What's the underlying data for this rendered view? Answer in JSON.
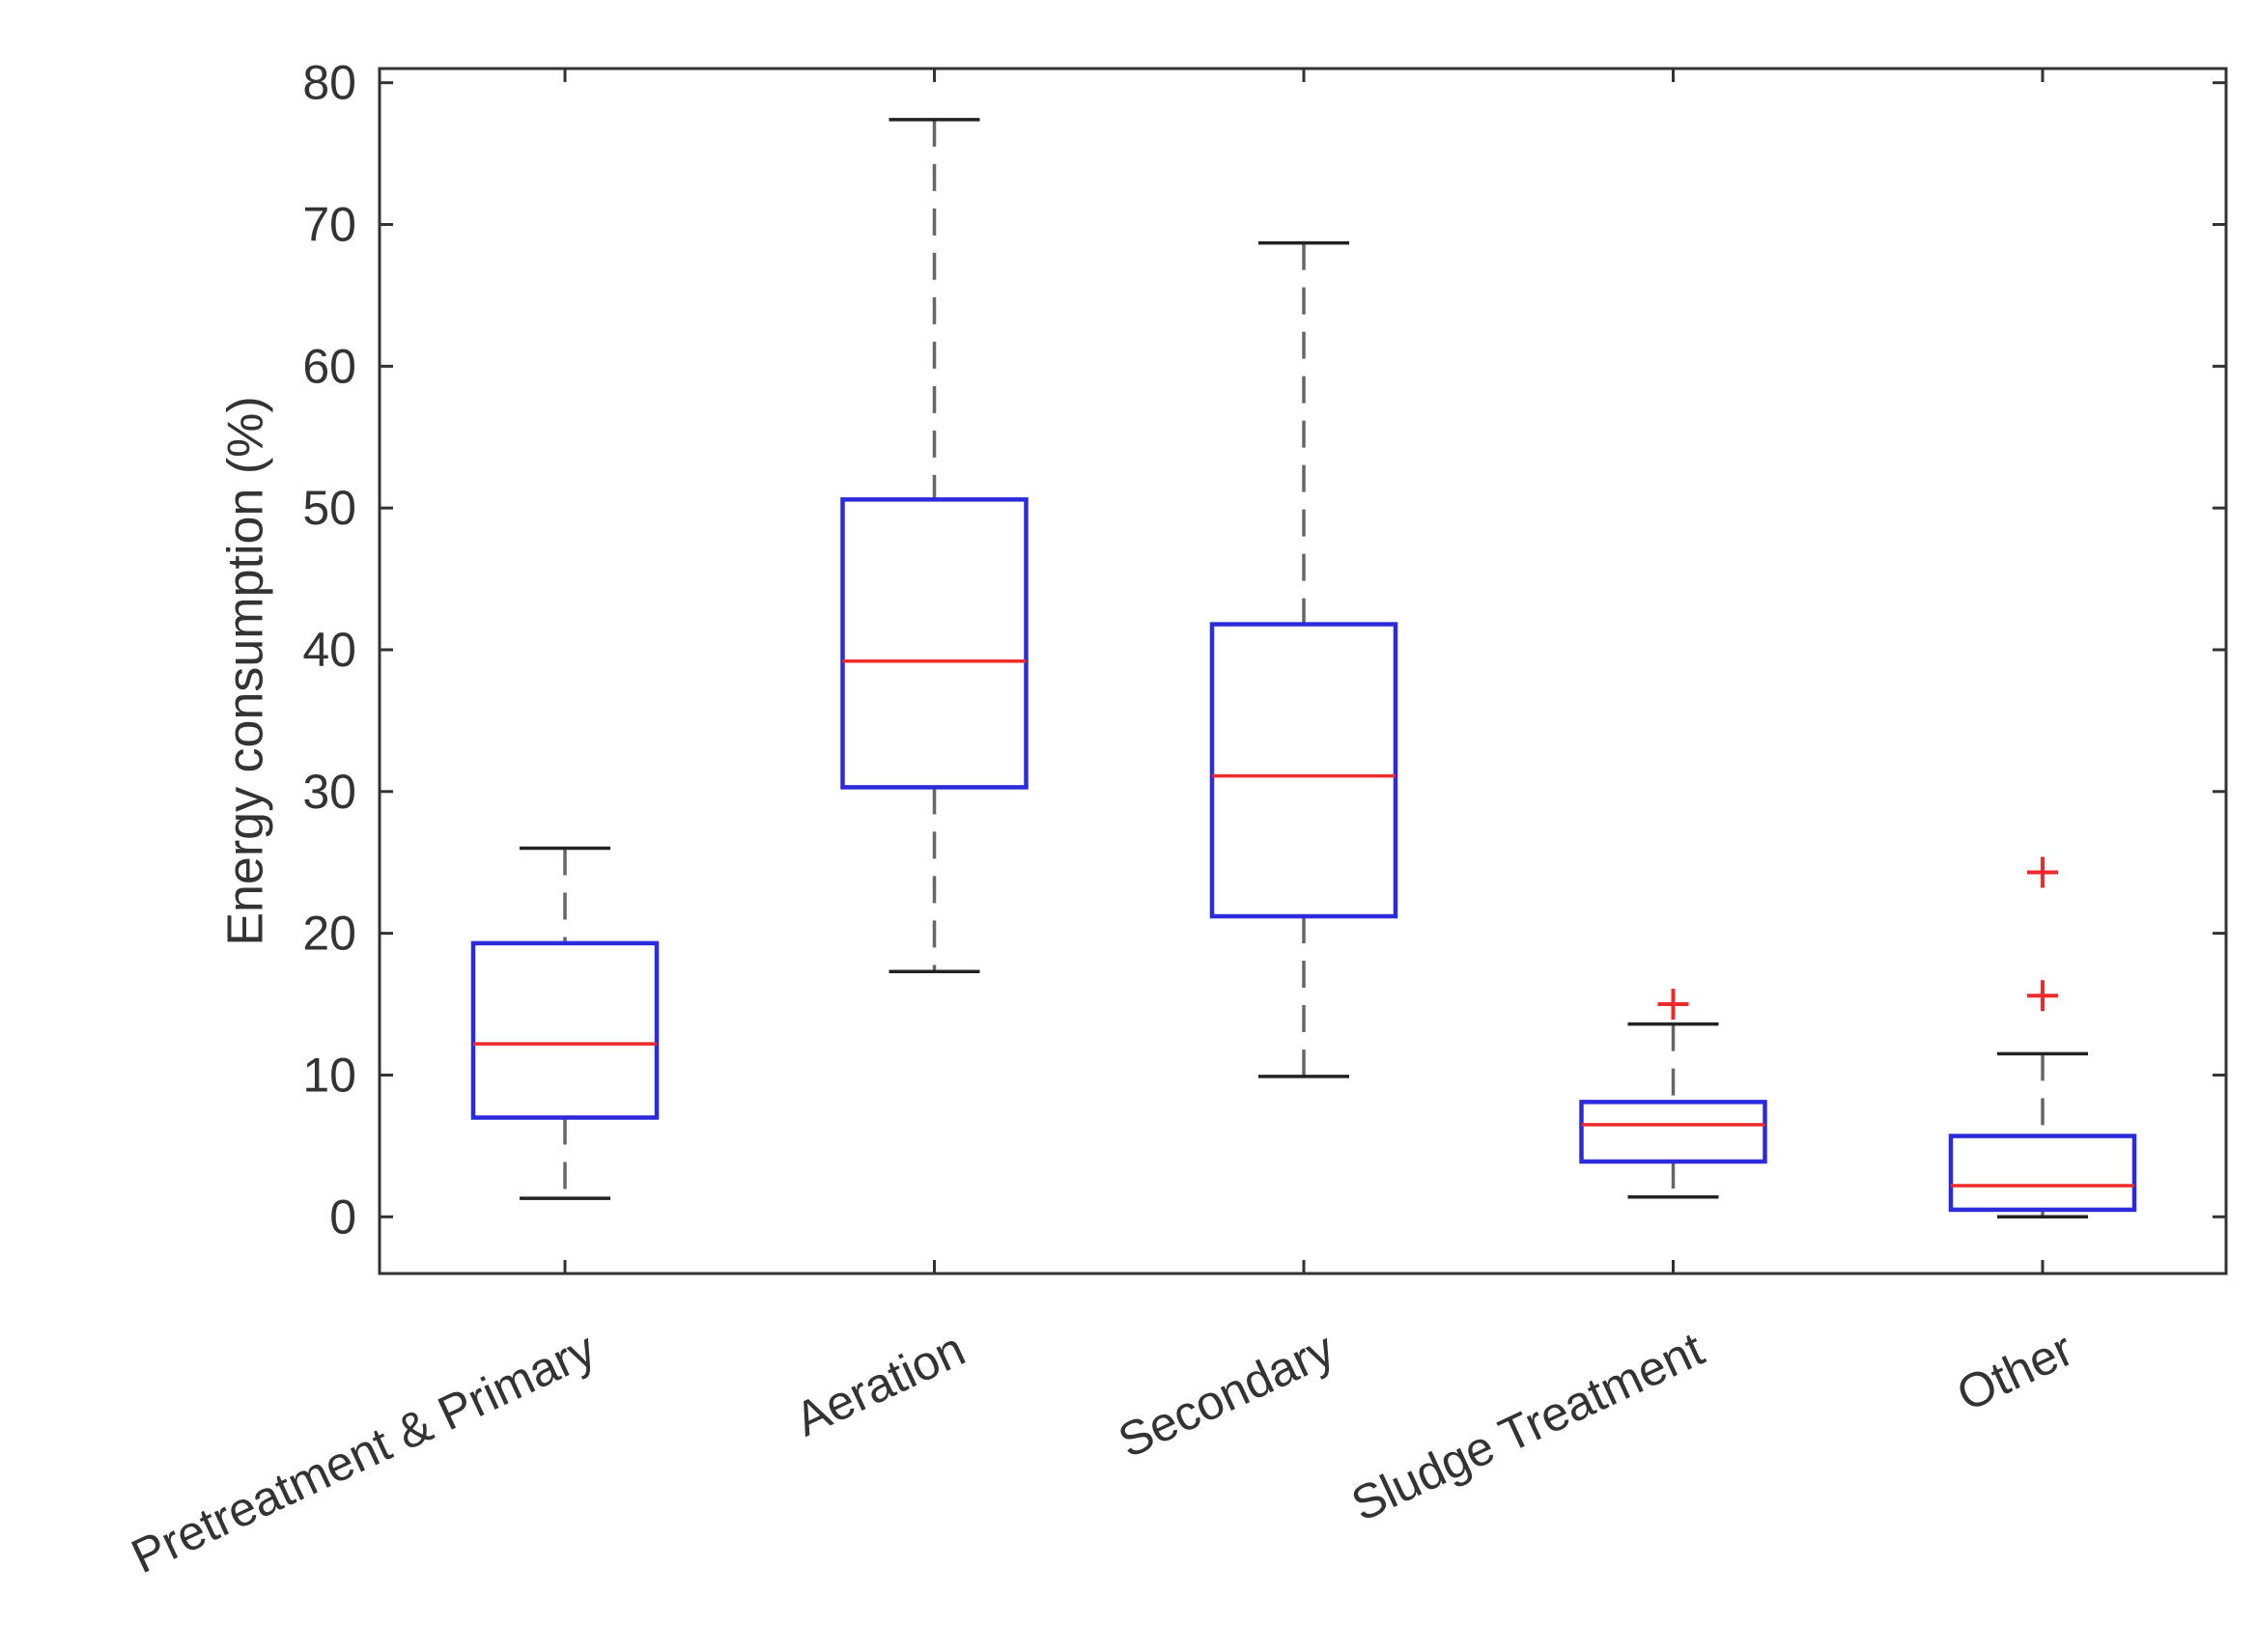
{
  "chart_data": {
    "type": "boxplot",
    "title": "",
    "xlabel": "",
    "ylabel": "Energy consumption (%)",
    "ylim": [
      -4,
      81
    ],
    "yticks": [
      0,
      10,
      20,
      30,
      40,
      50,
      60,
      70,
      80
    ],
    "grid": false,
    "categories": [
      "Pretreatment & Primary",
      "Aeration",
      "Secondary",
      "Sludge Treatment",
      "Other"
    ],
    "boxes": [
      {
        "category": "Pretreatment & Primary",
        "whisker_low": 1.3,
        "q1": 7.0,
        "median": 12.2,
        "q3": 19.3,
        "whisker_high": 26.0,
        "outliers": []
      },
      {
        "category": "Aeration",
        "whisker_low": 17.3,
        "q1": 30.3,
        "median": 39.2,
        "q3": 50.6,
        "whisker_high": 77.4,
        "outliers": []
      },
      {
        "category": "Secondary",
        "whisker_low": 9.9,
        "q1": 21.2,
        "median": 31.1,
        "q3": 41.8,
        "whisker_high": 68.7,
        "outliers": []
      },
      {
        "category": "Sludge Treatment",
        "whisker_low": 1.4,
        "q1": 3.9,
        "median": 6.5,
        "q3": 8.1,
        "whisker_high": 13.6,
        "outliers": [
          15.0
        ]
      },
      {
        "category": "Other",
        "whisker_low": 0.0,
        "q1": 0.5,
        "median": 2.2,
        "q3": 5.7,
        "whisker_high": 11.5,
        "outliers": [
          15.6,
          24.3
        ]
      }
    ],
    "colors": {
      "box": "#2b2bdb",
      "median": "#ee2a2a",
      "whisker": "#666666",
      "cap": "#222222",
      "outlier": "#ee2a2a",
      "axis": "#333333"
    }
  }
}
